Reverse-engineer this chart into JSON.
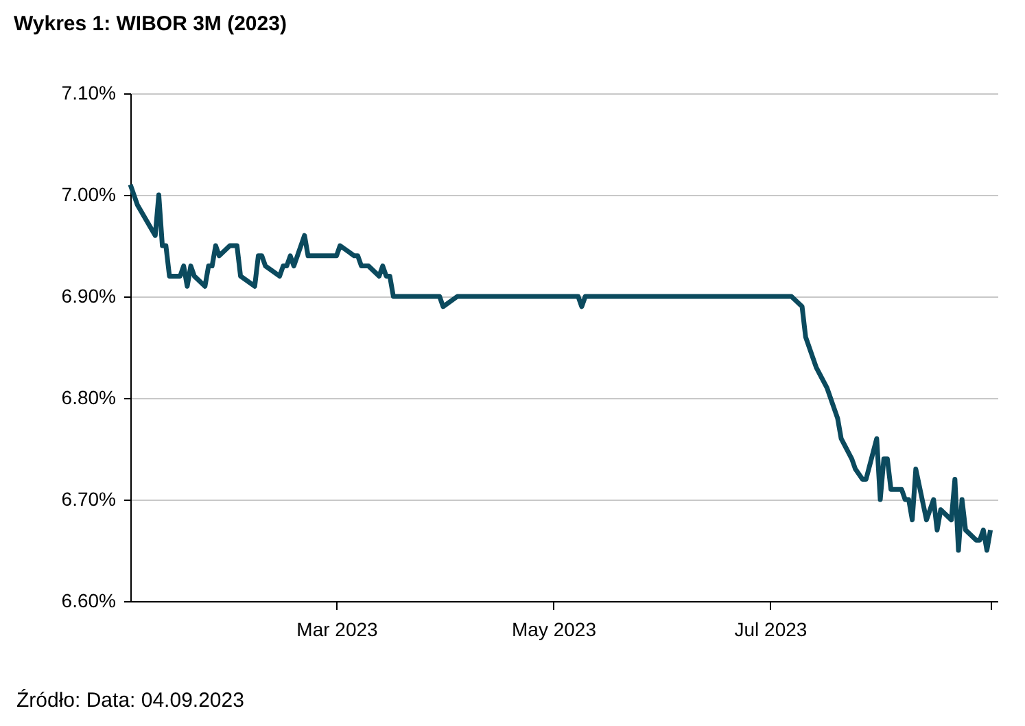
{
  "chart_data": {
    "type": "line",
    "title": "Wykres 1: WIBOR 3M (2023)",
    "x": [
      "2023-01-02",
      "2023-01-04",
      "2023-01-09",
      "2023-01-10",
      "2023-01-11",
      "2023-01-12",
      "2023-01-13",
      "2023-01-16",
      "2023-01-17",
      "2023-01-18",
      "2023-01-19",
      "2023-01-20",
      "2023-01-23",
      "2023-01-24",
      "2023-01-25",
      "2023-01-26",
      "2023-01-27",
      "2023-01-30",
      "2023-02-01",
      "2023-02-02",
      "2023-02-06",
      "2023-02-07",
      "2023-02-08",
      "2023-02-09",
      "2023-02-13",
      "2023-02-14",
      "2023-02-15",
      "2023-02-16",
      "2023-02-17",
      "2023-02-20",
      "2023-02-21",
      "2023-03-01",
      "2023-03-02",
      "2023-03-06",
      "2023-03-07",
      "2023-03-08",
      "2023-03-10",
      "2023-03-13",
      "2023-03-14",
      "2023-03-15",
      "2023-03-16",
      "2023-03-17",
      "2023-03-30",
      "2023-03-31",
      "2023-04-04",
      "2023-05-08",
      "2023-05-09",
      "2023-05-10",
      "2023-07-07",
      "2023-07-10",
      "2023-07-11",
      "2023-07-14",
      "2023-07-17",
      "2023-07-20",
      "2023-07-21",
      "2023-07-24",
      "2023-07-25",
      "2023-07-27",
      "2023-07-28",
      "2023-07-31",
      "2023-08-01",
      "2023-08-02",
      "2023-08-03",
      "2023-08-04",
      "2023-08-07",
      "2023-08-08",
      "2023-08-09",
      "2023-08-10",
      "2023-08-11",
      "2023-08-14",
      "2023-08-16",
      "2023-08-17",
      "2023-08-18",
      "2023-08-21",
      "2023-08-22",
      "2023-08-23",
      "2023-08-24",
      "2023-08-25",
      "2023-08-28",
      "2023-08-29",
      "2023-08-30",
      "2023-08-31",
      "2023-09-01"
    ],
    "series": [
      {
        "color": "#0b4a5e",
        "values": [
          7.01,
          6.99,
          6.96,
          7.0,
          6.95,
          6.95,
          6.92,
          6.92,
          6.93,
          6.91,
          6.93,
          6.92,
          6.91,
          6.93,
          6.93,
          6.95,
          6.94,
          6.95,
          6.95,
          6.92,
          6.91,
          6.94,
          6.94,
          6.93,
          6.92,
          6.93,
          6.93,
          6.94,
          6.93,
          6.96,
          6.94,
          6.94,
          6.95,
          6.94,
          6.94,
          6.93,
          6.93,
          6.92,
          6.93,
          6.92,
          6.92,
          6.9,
          6.9,
          6.89,
          6.9,
          6.9,
          6.89,
          6.9,
          6.9,
          6.89,
          6.86,
          6.83,
          6.81,
          6.78,
          6.76,
          6.74,
          6.73,
          6.72,
          6.72,
          6.76,
          6.7,
          6.74,
          6.74,
          6.71,
          6.71,
          6.7,
          6.7,
          6.68,
          6.73,
          6.68,
          6.7,
          6.67,
          6.69,
          6.68,
          6.72,
          6.65,
          6.7,
          6.67,
          6.66,
          6.66,
          6.67,
          6.65,
          6.67
        ]
      }
    ],
    "xlim": [
      "2023-01-02",
      "2023-09-03"
    ],
    "xticks": [
      {
        "value": "2023-03-01",
        "label": "Mar 2023"
      },
      {
        "value": "2023-05-01",
        "label": "May 2023"
      },
      {
        "value": "2023-07-01",
        "label": "Jul 2023"
      },
      {
        "value": "2023-09-01",
        "label": null
      }
    ],
    "ylim": [
      6.6,
      7.1
    ],
    "yticks": [
      {
        "value": 6.6,
        "label": "6.60%"
      },
      {
        "value": 6.7,
        "label": "6.70%"
      },
      {
        "value": 6.8,
        "label": "6.80%"
      },
      {
        "value": 6.9,
        "label": "6.90%"
      },
      {
        "value": 7.0,
        "label": "7.00%"
      },
      {
        "value": 7.1,
        "label": "7.10%"
      }
    ],
    "grid": "y",
    "marker": "none",
    "line_style": "solid",
    "annotations": [
      "Źródło: Data: 04.09.2023"
    ]
  }
}
